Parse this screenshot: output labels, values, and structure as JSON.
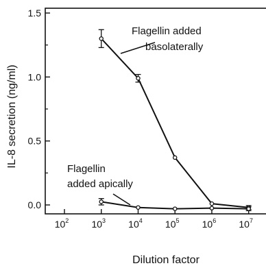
{
  "chart_data": {
    "type": "line",
    "title": "",
    "xlabel": "Dilution factor",
    "ylabel": "IL-8 secretion (ng/ml)",
    "x_scale": "log10",
    "xlim": [
      100,
      10000000
    ],
    "ylim": [
      -0.12,
      1.5
    ],
    "x_ticks": [
      {
        "base": "10",
        "exp": "2"
      },
      {
        "base": "10",
        "exp": "3"
      },
      {
        "base": "10",
        "exp": "4"
      },
      {
        "base": "10",
        "exp": "5"
      },
      {
        "base": "10",
        "exp": "6"
      },
      {
        "base": "10",
        "exp": "7"
      }
    ],
    "y_ticks": [
      "0.0",
      "0.5",
      "1.0",
      "1.5"
    ],
    "series": [
      {
        "x": [
          1000,
          10000,
          100000,
          1000000,
          10000000
        ],
        "y": [
          1.3,
          0.99,
          0.37,
          0.01,
          -0.02
        ],
        "err": [
          0.07,
          0.03,
          0,
          0,
          0.015
        ]
      },
      {
        "x": [
          1000,
          10000,
          100000,
          1000000,
          10000000
        ],
        "y": [
          0.025,
          -0.02,
          -0.03,
          -0.025,
          -0.03
        ],
        "err": [
          0.025,
          0,
          0,
          0,
          0.015
        ]
      }
    ],
    "annotations": [
      {
        "lines": [
          "Flagellin added",
          "basolaterally"
        ]
      },
      {
        "lines": [
          "Flagellin",
          "added apically"
        ]
      }
    ]
  }
}
